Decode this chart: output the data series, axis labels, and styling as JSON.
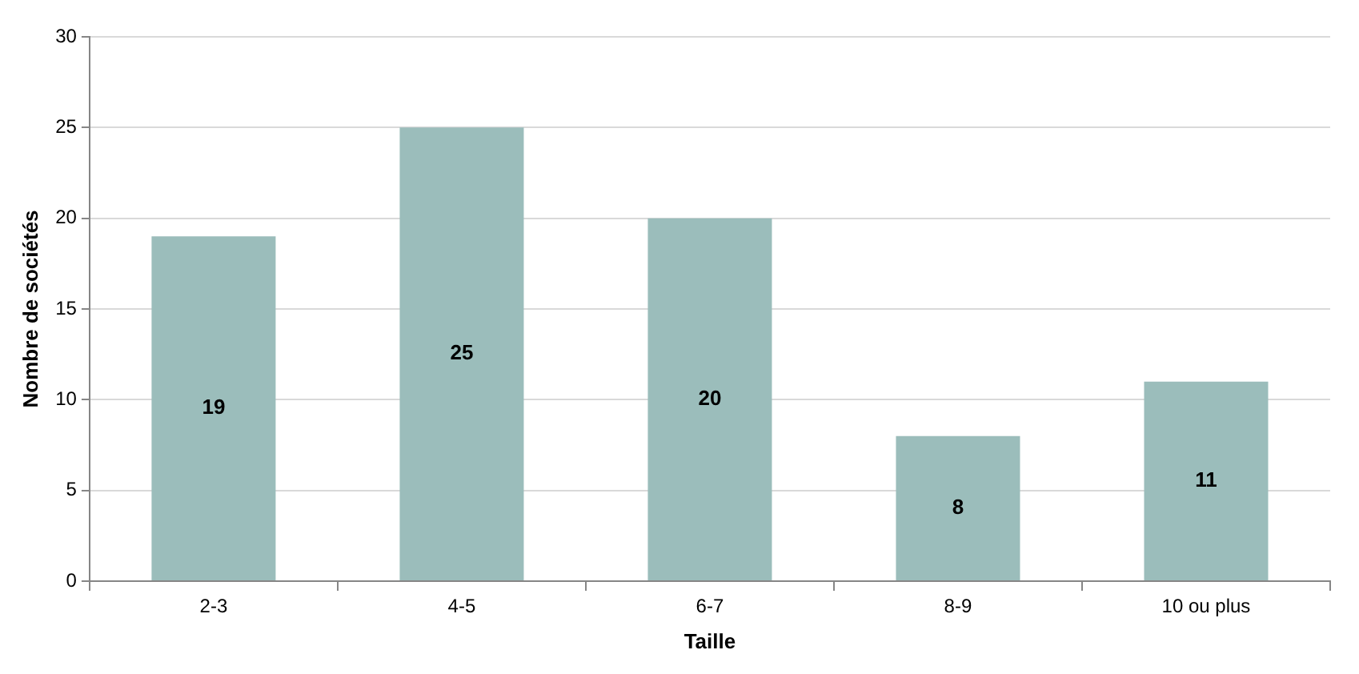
{
  "chart_data": {
    "type": "bar",
    "xlabel": "Taille",
    "ylabel": "Nombre de sociétés",
    "categories": [
      "2-3",
      "4-5",
      "6-7",
      "8-9",
      "10 ou plus"
    ],
    "values": [
      19,
      25,
      20,
      8,
      11
    ],
    "color": "#9bbdbb",
    "ylim": [
      0,
      30
    ],
    "yticks": [
      0,
      5,
      10,
      15,
      20,
      25,
      30
    ],
    "grid": "y",
    "data_labels": true,
    "legend": false
  }
}
